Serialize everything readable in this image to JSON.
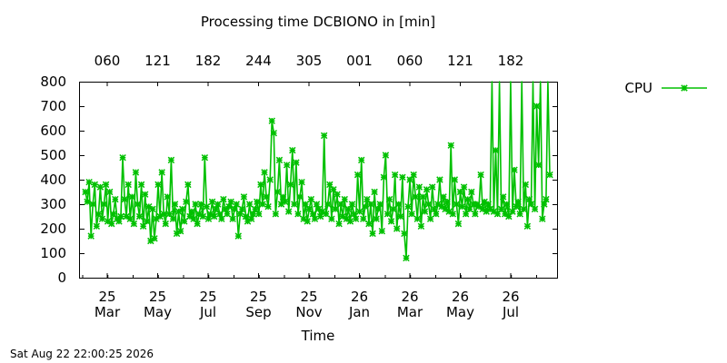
{
  "footer_timestamp": "Sat Aug 22 22:00:25 2026",
  "chart_data": {
    "type": "line",
    "title": "Processing time DCBIONO in [min]",
    "xlabel": "Time",
    "ylabel": "",
    "ylim": [
      0,
      800
    ],
    "y_ticks": [
      "0",
      "100",
      "200",
      "300",
      "400",
      "500",
      "600",
      "700",
      "800"
    ],
    "x_ticks_bottom": [
      {
        "day": "25",
        "month": "Mar"
      },
      {
        "day": "25",
        "month": "May"
      },
      {
        "day": "25",
        "month": "Jul"
      },
      {
        "day": "25",
        "month": "Sep"
      },
      {
        "day": "25",
        "month": "Nov"
      },
      {
        "day": "26",
        "month": "Jan"
      },
      {
        "day": "26",
        "month": "Mar"
      },
      {
        "day": "26",
        "month": "May"
      },
      {
        "day": "26",
        "month": "Jul"
      }
    ],
    "x_ticks_top": [
      "060",
      "121",
      "182",
      "244",
      "305",
      "001",
      "060",
      "121",
      "182"
    ],
    "grid": false,
    "legend_position": "top-right",
    "colors": {
      "cpu": "#00c000"
    },
    "series": [
      {
        "name": "CPU",
        "marker": "x-star",
        "values": [
          350,
          310,
          390,
          170,
          300,
          380,
          210,
          260,
          370,
          240,
          300,
          380,
          230,
          350,
          220,
          260,
          320,
          240,
          230,
          250,
          490,
          320,
          250,
          380,
          240,
          330,
          220,
          430,
          300,
          250,
          380,
          210,
          340,
          230,
          290,
          150,
          280,
          160,
          240,
          380,
          250,
          430,
          260,
          220,
          330,
          260,
          480,
          240,
          300,
          180,
          270,
          190,
          280,
          230,
          310,
          380,
          250,
          270,
          240,
          300,
          220,
          260,
          300,
          250,
          490,
          290,
          240,
          260,
          310,
          250,
          280,
          300,
          260,
          240,
          320,
          280,
          260,
          290,
          310,
          240,
          280,
          300,
          170,
          260,
          280,
          330,
          250,
          230,
          300,
          240,
          260,
          280,
          310,
          260,
          380,
          300,
          430,
          330,
          290,
          400,
          640,
          590,
          260,
          350,
          480,
          300,
          330,
          310,
          460,
          270,
          380,
          520,
          300,
          470,
          260,
          330,
          390,
          240,
          300,
          230,
          280,
          320,
          260,
          240,
          300,
          280,
          250,
          270,
          580,
          260,
          300,
          380,
          240,
          360,
          280,
          340,
          220,
          300,
          250,
          320,
          240,
          280,
          230,
          300,
          260,
          240,
          420,
          270,
          480,
          240,
          290,
          320,
          220,
          300,
          180,
          350,
          240,
          280,
          300,
          190,
          410,
          500,
          260,
          320,
          230,
          280,
          420,
          200,
          300,
          250,
          410,
          180,
          80,
          290,
          400,
          260,
          420,
          330,
          240,
          370,
          210,
          330,
          270,
          360,
          300,
          240,
          370,
          280,
          260,
          300,
          400,
          290,
          330,
          280,
          310,
          270,
          540,
          260,
          400,
          300,
          220,
          350,
          290,
          370,
          260,
          320,
          280,
          350,
          300,
          260,
          300,
          290,
          420,
          280,
          310,
          270,
          300,
          280,
          800,
          270,
          520,
          260,
          800,
          280,
          330,
          260,
          300,
          250,
          800,
          270,
          440,
          290,
          310,
          260,
          800,
          280,
          380,
          210,
          320,
          300,
          800,
          280,
          700,
          460,
          800,
          240,
          300,
          320,
          800,
          420
        ]
      }
    ]
  }
}
